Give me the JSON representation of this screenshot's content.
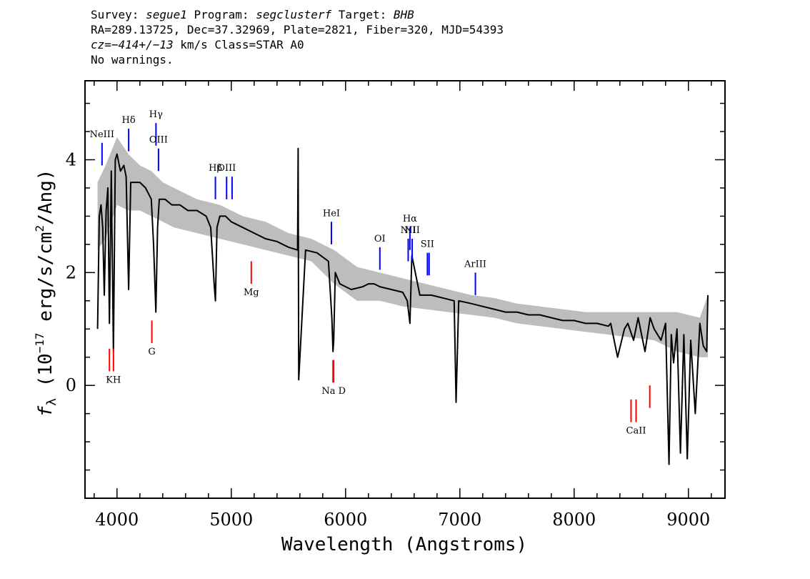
{
  "header": {
    "line1": {
      "survey_label": "Survey: ",
      "survey": "segue1",
      "program_label": " Program: ",
      "program": "segclusterf",
      "target_label": " Target: ",
      "target": "BHB"
    },
    "line2": "RA=289.13725, Dec=37.32969, Plate=2821, Fiber=320, MJD=54393",
    "line3": {
      "cz": "cz=−414+/−13",
      "rest": " km/s Class=STAR A0"
    },
    "line4": "No warnings."
  },
  "colors": {
    "flux": "#000000",
    "error_band": "#bdbdbd",
    "emission_marker": "#0000ff",
    "absorption_marker": "#ff0000",
    "background": "#ffffff"
  },
  "chart_data": {
    "type": "line",
    "xlabel": "Wavelength (Angstroms)",
    "ylabel_pre": "f",
    "ylabel_sub": "λ",
    "ylabel_unit_a": " (10",
    "ylabel_exp": "−17",
    "ylabel_unit_b": " erg/s/cm",
    "ylabel_exp2": "2",
    "ylabel_unit_c": "/Ang)",
    "xlim": [
      3720,
      9320
    ],
    "ylim": [
      -2.0,
      5.4
    ],
    "x_ticks": [
      4000,
      5000,
      6000,
      7000,
      8000,
      9000
    ],
    "x_tick_labels": [
      "4000",
      "5000",
      "6000",
      "7000",
      "8000",
      "9000"
    ],
    "y_ticks": [
      0,
      2,
      4
    ],
    "y_tick_labels": [
      "0",
      "2",
      "4"
    ],
    "grid": false,
    "series": [
      {
        "role": "flux",
        "x": [
          3830,
          3845,
          3860,
          3875,
          3889,
          3905,
          3920,
          3934,
          3950,
          3969,
          3985,
          4000,
          4030,
          4060,
          4080,
          4102,
          4120,
          4160,
          4200,
          4250,
          4300,
          4320,
          4340,
          4355,
          4370,
          4420,
          4480,
          4550,
          4620,
          4700,
          4780,
          4820,
          4850,
          4861,
          4875,
          4900,
          4950,
          5000,
          5100,
          5200,
          5300,
          5400,
          5500,
          5580,
          5585,
          5590,
          5650,
          5750,
          5850,
          5880,
          5890,
          5896,
          5910,
          5950,
          6050,
          6150,
          6200,
          6250,
          6300,
          6400,
          6500,
          6540,
          6563,
          6580,
          6650,
          6750,
          6850,
          6950,
          6967,
          6990,
          7100,
          7200,
          7300,
          7400,
          7500,
          7600,
          7700,
          7800,
          7900,
          8000,
          8100,
          8200,
          8300,
          8320,
          8380,
          8440,
          8470,
          8520,
          8560,
          8620,
          8665,
          8700,
          8760,
          8800,
          8830,
          8850,
          8870,
          8900,
          8930,
          8960,
          8990,
          9020,
          9060,
          9100,
          9130,
          9160,
          9170
        ],
        "y": [
          1.0,
          3.0,
          3.2,
          2.8,
          1.6,
          3.1,
          3.5,
          1.1,
          3.8,
          0.6,
          4.0,
          4.1,
          3.8,
          3.9,
          3.7,
          1.7,
          3.6,
          3.6,
          3.6,
          3.5,
          3.3,
          2.5,
          1.3,
          2.8,
          3.3,
          3.3,
          3.2,
          3.2,
          3.1,
          3.1,
          3.0,
          2.8,
          1.8,
          1.5,
          2.8,
          3.0,
          3.0,
          2.9,
          2.8,
          2.7,
          2.6,
          2.55,
          2.45,
          2.4,
          4.2,
          0.1,
          2.4,
          2.35,
          2.2,
          1.2,
          0.6,
          0.8,
          2.0,
          1.8,
          1.7,
          1.75,
          1.8,
          1.8,
          1.75,
          1.7,
          1.65,
          1.5,
          1.1,
          2.3,
          1.6,
          1.6,
          1.55,
          1.5,
          -0.3,
          1.5,
          1.45,
          1.4,
          1.35,
          1.3,
          1.3,
          1.25,
          1.25,
          1.2,
          1.15,
          1.15,
          1.1,
          1.1,
          1.05,
          1.1,
          0.5,
          1.0,
          1.1,
          0.8,
          1.2,
          0.6,
          1.2,
          1.0,
          0.8,
          1.1,
          -1.4,
          0.9,
          0.4,
          1.0,
          -1.2,
          0.9,
          -1.3,
          0.8,
          -0.5,
          1.1,
          0.7,
          0.6,
          1.6
        ]
      },
      {
        "role": "error_upper",
        "x": [
          3830,
          3900,
          4000,
          4100,
          4200,
          4300,
          4400,
          4500,
          4700,
          4900,
          5100,
          5300,
          5500,
          5700,
          5900,
          6100,
          6300,
          6500,
          6700,
          6900,
          7100,
          7300,
          7500,
          7700,
          7900,
          8100,
          8300,
          8500,
          8700,
          8900,
          9100,
          9170
        ],
        "y": [
          3.6,
          3.9,
          4.4,
          4.1,
          3.9,
          3.8,
          3.6,
          3.5,
          3.3,
          3.2,
          3.0,
          2.9,
          2.7,
          2.6,
          2.4,
          2.1,
          2.0,
          1.9,
          1.8,
          1.7,
          1.6,
          1.55,
          1.45,
          1.4,
          1.35,
          1.3,
          1.3,
          1.3,
          1.3,
          1.3,
          1.2,
          1.6
        ]
      },
      {
        "role": "error_lower",
        "x": [
          3830,
          3900,
          4000,
          4100,
          4200,
          4300,
          4400,
          4500,
          4700,
          4900,
          5100,
          5300,
          5500,
          5700,
          5900,
          6100,
          6300,
          6500,
          6700,
          6900,
          7100,
          7300,
          7500,
          7700,
          7900,
          8100,
          8300,
          8500,
          8700,
          8900,
          9100,
          9170
        ],
        "y": [
          2.4,
          2.6,
          3.2,
          3.1,
          3.1,
          3.0,
          2.9,
          2.8,
          2.7,
          2.6,
          2.5,
          2.4,
          2.3,
          2.2,
          1.8,
          1.5,
          1.5,
          1.4,
          1.35,
          1.3,
          1.25,
          1.2,
          1.1,
          1.05,
          1.0,
          0.95,
          0.9,
          0.85,
          0.8,
          0.6,
          0.5,
          0.5
        ]
      }
    ],
    "emission_lines": [
      {
        "label": "NeIII",
        "x": 3869,
        "y0": 3.9,
        "y1": 4.3
      },
      {
        "label": "Hδ",
        "x": 4102,
        "y0": 4.15,
        "y1": 4.55
      },
      {
        "label": "Hγ",
        "x": 4341,
        "y0": 4.25,
        "y1": 4.65
      },
      {
        "label": "OIII",
        "x": 4363,
        "y0": 3.8,
        "y1": 4.2
      },
      {
        "label": "Hβ",
        "x": 4861,
        "y0": 3.3,
        "y1": 3.7
      },
      {
        "label": "OIII",
        "x": 4959,
        "y0": 3.3,
        "y1": 3.7
      },
      {
        "label": "",
        "x": 5007,
        "y0": 3.3,
        "y1": 3.7
      },
      {
        "label": "HeI",
        "x": 5876,
        "y0": 2.5,
        "y1": 2.9
      },
      {
        "label": "OI",
        "x": 6300,
        "y0": 2.05,
        "y1": 2.45
      },
      {
        "label": "NII",
        "x": 6548,
        "y0": 2.2,
        "y1": 2.6
      },
      {
        "label": "Hα",
        "x": 6563,
        "y0": 2.4,
        "y1": 2.8
      },
      {
        "label": "NII",
        "x": 6583,
        "y0": 2.2,
        "y1": 2.6
      },
      {
        "label": "SII",
        "x": 6716,
        "y0": 1.95,
        "y1": 2.35
      },
      {
        "label": "",
        "x": 6731,
        "y0": 1.95,
        "y1": 2.35
      },
      {
        "label": "ArIII",
        "x": 7136,
        "y0": 1.6,
        "y1": 2.0
      }
    ],
    "absorption_lines": [
      {
        "label": "",
        "x": 3934,
        "y0": 0.25,
        "y1": 0.65
      },
      {
        "label": "KH",
        "x": 3969,
        "y0": 0.25,
        "y1": 0.65
      },
      {
        "label": "G",
        "x": 4305,
        "y0": 0.75,
        "y1": 1.15
      },
      {
        "label": "Mg",
        "x": 5175,
        "y0": 1.8,
        "y1": 2.2
      },
      {
        "label": "",
        "x": 5890,
        "y0": 0.05,
        "y1": 0.45
      },
      {
        "label": "Na D",
        "x": 5896,
        "y0": 0.05,
        "y1": 0.45
      },
      {
        "label": "",
        "x": 8498,
        "y0": -0.65,
        "y1": -0.25
      },
      {
        "label": "CaII",
        "x": 8542,
        "y0": -0.65,
        "y1": -0.25
      },
      {
        "label": "",
        "x": 8662,
        "y0": -0.4,
        "y1": 0.0
      }
    ]
  }
}
